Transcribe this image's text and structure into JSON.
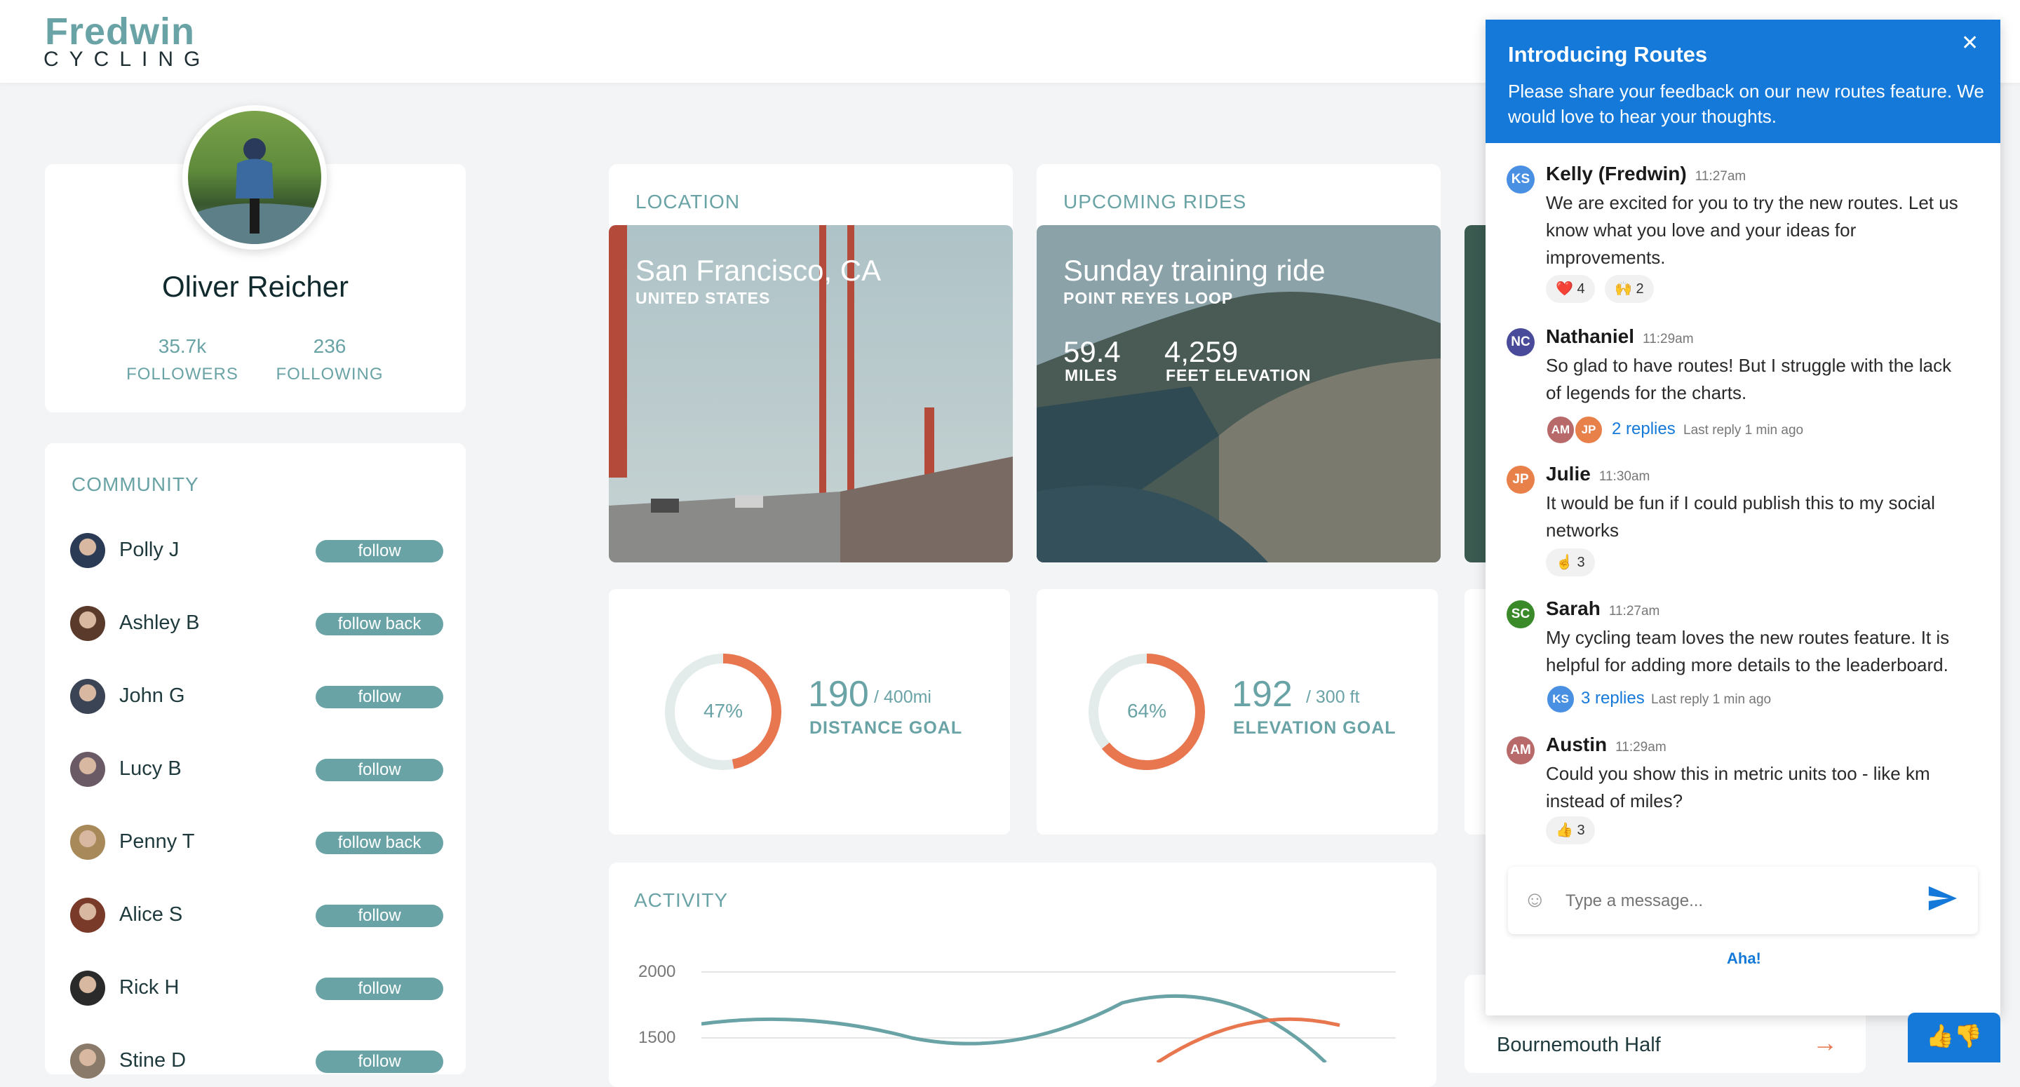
{
  "brand": {
    "name": "Fredwin",
    "tagline": "CYCLING"
  },
  "profile": {
    "name": "Oliver Reicher",
    "followers": "35.7k",
    "followers_label": "FOLLOWERS",
    "following": "236",
    "following_label": "FOLLOWING"
  },
  "community": {
    "title": "COMMUNITY",
    "members": [
      {
        "name": "Polly J",
        "action": "follow",
        "color": "#2b3a55"
      },
      {
        "name": "Ashley B",
        "action": "follow back",
        "color": "#5a3a2a"
      },
      {
        "name": "John G",
        "action": "follow",
        "color": "#3b4454"
      },
      {
        "name": "Lucy B",
        "action": "follow",
        "color": "#6a5a66"
      },
      {
        "name": "Penny T",
        "action": "follow back",
        "color": "#a88a5a"
      },
      {
        "name": "Alice S",
        "action": "follow",
        "color": "#7a3a2a"
      },
      {
        "name": "Rick H",
        "action": "follow",
        "color": "#2a2a2a"
      },
      {
        "name": "Stine D",
        "action": "follow",
        "color": "#8a7a6a"
      }
    ]
  },
  "location": {
    "section": "LOCATION",
    "city": "San Francisco, CA",
    "country": "UNITED STATES"
  },
  "upcoming": {
    "section": "UPCOMING RIDES",
    "title": "Sunday training ride",
    "route": "POINT REYES LOOP",
    "miles": "59.4",
    "miles_label": "MILES",
    "elevation": "4,259",
    "elevation_label": "FEET ELEVATION"
  },
  "goals": [
    {
      "pct_label": "47%",
      "pct": 0.47,
      "value": "190",
      "target": "/ 400mi",
      "label": "DISTANCE GOAL"
    },
    {
      "pct_label": "64%",
      "pct": 0.64,
      "value": "192",
      "target": "/ 300 ft",
      "label": "ELEVATION GOAL"
    }
  ],
  "activity": {
    "section": "ACTIVITY",
    "yticks": [
      "2000",
      "1500"
    ]
  },
  "events": {
    "item": "Bournemouth Half"
  },
  "chat": {
    "title": "Introducing Routes",
    "description": "Please share your feedback on our new routes feature. We would love to hear your thoughts.",
    "messages": [
      {
        "initials": "KS",
        "color": "#4a90e2",
        "author": "Kelly (Fredwin)",
        "time": "11:27am",
        "text": "We are excited for you to try the new routes. Let us know what you love and your ideas for improvements."
      },
      {
        "initials": "NC",
        "color": "#4a4a9a",
        "author": "Nathaniel",
        "time": "11:29am",
        "text": "So glad to have routes! But I struggle with the lack of legends for the charts."
      },
      {
        "initials": "JP",
        "color": "#e8804a",
        "author": "Julie",
        "time": "11:30am",
        "text": "It would be fun if I could publish this to my social networks"
      },
      {
        "initials": "SC",
        "color": "#3a8a2a",
        "author": "Sarah",
        "time": "11:27am",
        "text": "My cycling team loves the new routes feature. It is helpful for adding more details to the leaderboard."
      },
      {
        "initials": "AM",
        "color": "#b86a6a",
        "author": "Austin",
        "time": "11:29am",
        "text": "Could you show this in metric units too - like km instead of miles?"
      }
    ],
    "reactions": {
      "kelly_heart": "❤️ 4",
      "kelly_hands": "🙌 2",
      "julie": "☝️ 3",
      "austin": "👍 3"
    },
    "threads": {
      "nathaniel": {
        "a1": "AM",
        "a1_color": "#b86a6a",
        "a2": "JP",
        "a2_color": "#e8804a",
        "replies": "2 replies",
        "last": "Last reply 1 min ago"
      },
      "sarah": {
        "a1": "KS",
        "a1_color": "#4a90e2",
        "replies": "3 replies",
        "last": "Last reply 1 min ago"
      }
    },
    "input_placeholder": "Type a message...",
    "footer_brand": "Aha!"
  }
}
